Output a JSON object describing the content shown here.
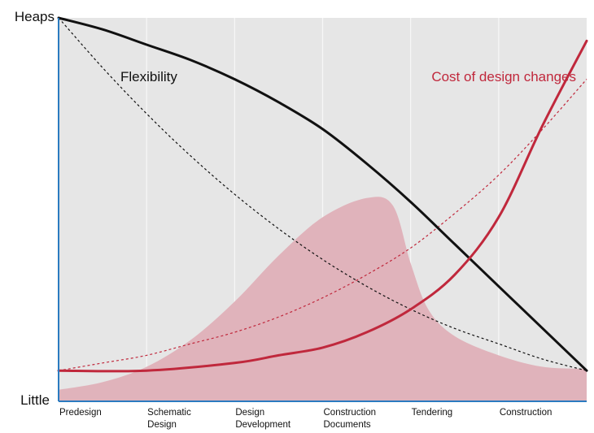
{
  "chart_data": {
    "type": "line",
    "title": "",
    "xlabel": "",
    "ylabel": "",
    "y_axis": {
      "top_label": "Heaps",
      "bottom_label": "Little",
      "ylim": [
        0,
        1
      ]
    },
    "categories": [
      [
        "Predesign"
      ],
      [
        "Schematic",
        "Design"
      ],
      [
        "Design",
        "Development"
      ],
      [
        "Construction",
        "Documents"
      ],
      [
        "Tendering"
      ],
      [
        "Construction"
      ]
    ],
    "xlim": [
      0,
      6
    ],
    "grid": "vertical",
    "colors": {
      "background": "#e6e6e6",
      "axis": "#2b7bc0",
      "gridline": "#f7f7f7",
      "flexibility": "#111111",
      "cost": "#c0283c",
      "area": "#e0b3bb"
    },
    "series": [
      {
        "name": "Flexibility",
        "style": "solid",
        "points": [
          [
            0,
            1.0
          ],
          [
            0.5,
            0.97
          ],
          [
            1,
            0.93
          ],
          [
            1.5,
            0.89
          ],
          [
            2,
            0.84
          ],
          [
            2.5,
            0.78
          ],
          [
            3,
            0.71
          ],
          [
            3.5,
            0.62
          ],
          [
            4,
            0.52
          ],
          [
            4.5,
            0.41
          ],
          [
            5,
            0.3
          ],
          [
            5.5,
            0.19
          ],
          [
            6,
            0.08
          ]
        ]
      },
      {
        "name": "Cost of design changes",
        "style": "solid",
        "points": [
          [
            0,
            0.08
          ],
          [
            1,
            0.08
          ],
          [
            2,
            0.1
          ],
          [
            2.5,
            0.12
          ],
          [
            3,
            0.14
          ],
          [
            3.5,
            0.18
          ],
          [
            4,
            0.24
          ],
          [
            4.5,
            0.33
          ],
          [
            5,
            0.48
          ],
          [
            5.5,
            0.72
          ],
          [
            6,
            0.94
          ]
        ]
      },
      {
        "name": "",
        "style": "dashed",
        "color_key": "flexibility",
        "points": [
          [
            0,
            1.0
          ],
          [
            0.5,
            0.87
          ],
          [
            1,
            0.75
          ],
          [
            1.5,
            0.64
          ],
          [
            2,
            0.54
          ],
          [
            2.5,
            0.45
          ],
          [
            3,
            0.37
          ],
          [
            3.5,
            0.3
          ],
          [
            4,
            0.24
          ],
          [
            4.5,
            0.19
          ],
          [
            5,
            0.15
          ],
          [
            5.5,
            0.11
          ],
          [
            6,
            0.08
          ]
        ]
      },
      {
        "name": "",
        "style": "dashed",
        "color_key": "cost",
        "points": [
          [
            0,
            0.08
          ],
          [
            0.5,
            0.1
          ],
          [
            1,
            0.12
          ],
          [
            1.5,
            0.15
          ],
          [
            2,
            0.18
          ],
          [
            2.5,
            0.22
          ],
          [
            3,
            0.27
          ],
          [
            3.5,
            0.33
          ],
          [
            4,
            0.4
          ],
          [
            4.5,
            0.49
          ],
          [
            5,
            0.59
          ],
          [
            5.5,
            0.71
          ],
          [
            6,
            0.84
          ]
        ]
      },
      {
        "name": "",
        "style": "area",
        "color_key": "area",
        "points": [
          [
            0,
            0.03
          ],
          [
            0.5,
            0.05
          ],
          [
            1,
            0.09
          ],
          [
            1.5,
            0.16
          ],
          [
            2,
            0.26
          ],
          [
            2.5,
            0.38
          ],
          [
            3,
            0.48
          ],
          [
            3.5,
            0.53
          ],
          [
            3.8,
            0.51
          ],
          [
            4,
            0.36
          ],
          [
            4.2,
            0.24
          ],
          [
            4.5,
            0.17
          ],
          [
            5,
            0.12
          ],
          [
            5.5,
            0.09
          ],
          [
            6,
            0.085
          ]
        ]
      }
    ],
    "annotations": [
      {
        "text": "Flexibility",
        "series": "Flexibility"
      },
      {
        "text": "Cost of design changes",
        "series": "Cost of design changes"
      }
    ]
  }
}
